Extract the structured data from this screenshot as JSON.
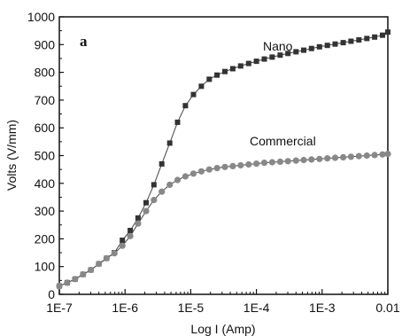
{
  "chart_data": {
    "type": "line",
    "panel_label": "a",
    "xlabel": "Log I (Amp)",
    "ylabel": "Volts (V/mm)",
    "x_scale": "log",
    "xlim": [
      1e-07,
      0.01
    ],
    "ylim": [
      0,
      1000
    ],
    "x_ticks": [
      1e-07,
      1e-06,
      1e-05,
      0.0001,
      0.001,
      0.01
    ],
    "x_tick_labels": [
      "1E-7",
      "1E-6",
      "1E-5",
      "1E-4",
      "1E-3",
      "0.01"
    ],
    "y_ticks": [
      0,
      100,
      200,
      300,
      400,
      500,
      600,
      700,
      800,
      900,
      1000
    ],
    "y_tick_labels": [
      "0",
      "100",
      "200",
      "300",
      "400",
      "500",
      "600",
      "700",
      "800",
      "900",
      "1000"
    ],
    "grid": false,
    "legend": "none",
    "series": [
      {
        "name": "Nano",
        "marker": "square",
        "color": "#333333",
        "x": [
          1e-07,
          1.32e-07,
          1.74e-07,
          2.3e-07,
          3.02e-07,
          4e-07,
          5.25e-07,
          6.9e-07,
          9.1e-07,
          1.2e-06,
          1.58e-06,
          2.09e-06,
          2.75e-06,
          3.63e-06,
          4.79e-06,
          6.3e-06,
          8.3e-06,
          1.1e-05,
          1.45e-05,
          1.91e-05,
          2.51e-05,
          3.31e-05,
          4.37e-05,
          5.75e-05,
          7.6e-05,
          0.0001,
          0.000132,
          0.000174,
          0.00023,
          0.000302,
          0.0004,
          0.000525,
          0.00069,
          0.00091,
          0.0012,
          0.00158,
          0.00209,
          0.00275,
          0.00363,
          0.00479,
          0.0063,
          0.0083,
          0.01
        ],
        "values": [
          30,
          42,
          55,
          72,
          88,
          110,
          130,
          150,
          195,
          230,
          275,
          330,
          395,
          470,
          545,
          620,
          680,
          720,
          750,
          775,
          790,
          803,
          813,
          823,
          832,
          840,
          848,
          855,
          862,
          868,
          874,
          880,
          886,
          892,
          897,
          902,
          907,
          912,
          917,
          922,
          927,
          934,
          945
        ]
      },
      {
        "name": "Commercial",
        "marker": "circle",
        "color": "#888888",
        "x": [
          1e-07,
          1.32e-07,
          1.74e-07,
          2.3e-07,
          3.02e-07,
          4e-07,
          5.25e-07,
          6.9e-07,
          9.1e-07,
          1.2e-06,
          1.58e-06,
          2.09e-06,
          2.75e-06,
          3.63e-06,
          4.79e-06,
          6.3e-06,
          8.3e-06,
          1.1e-05,
          1.45e-05,
          1.91e-05,
          2.51e-05,
          3.31e-05,
          4.37e-05,
          5.75e-05,
          7.6e-05,
          0.0001,
          0.000132,
          0.000174,
          0.00023,
          0.000302,
          0.0004,
          0.000525,
          0.00069,
          0.00091,
          0.0012,
          0.00158,
          0.00209,
          0.00275,
          0.00363,
          0.00479,
          0.0063,
          0.0083,
          0.01
        ],
        "values": [
          30,
          42,
          55,
          72,
          88,
          110,
          130,
          148,
          175,
          210,
          255,
          300,
          340,
          370,
          395,
          412,
          425,
          435,
          443,
          450,
          455,
          459,
          462,
          465,
          468,
          471,
          474,
          476,
          478,
          480,
          482,
          484,
          486,
          488,
          490,
          492,
          494,
          496,
          498,
          500,
          502,
          504,
          506
        ]
      }
    ]
  }
}
